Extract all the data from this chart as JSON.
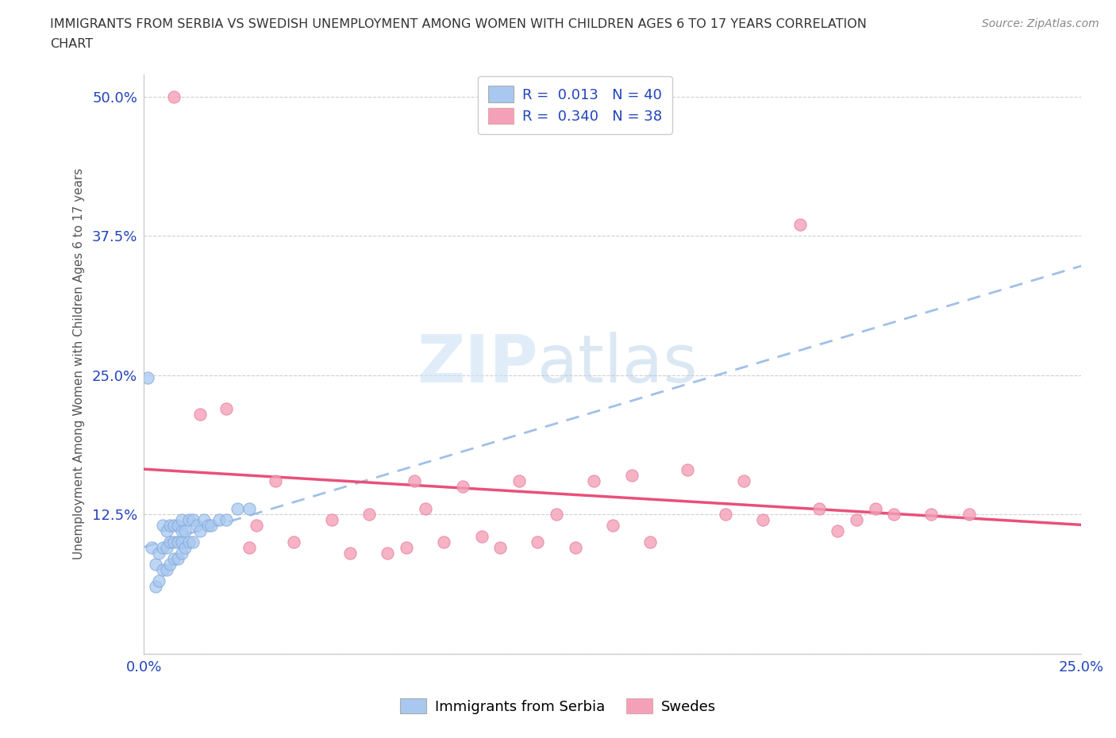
{
  "title_line1": "IMMIGRANTS FROM SERBIA VS SWEDISH UNEMPLOYMENT AMONG WOMEN WITH CHILDREN AGES 6 TO 17 YEARS CORRELATION",
  "title_line2": "CHART",
  "source": "Source: ZipAtlas.com",
  "ylabel_label": "Unemployment Among Women with Children Ages 6 to 17 years",
  "xlim": [
    0.0,
    0.25
  ],
  "ylim": [
    0.0,
    0.52
  ],
  "xticks": [
    0.0,
    0.025,
    0.05,
    0.075,
    0.1,
    0.125,
    0.15,
    0.175,
    0.2,
    0.225,
    0.25
  ],
  "xticklabels": [
    "0.0%",
    "",
    "",
    "",
    "",
    "",
    "",
    "",
    "",
    "",
    "25.0%"
  ],
  "yticks": [
    0.0,
    0.125,
    0.25,
    0.375,
    0.5
  ],
  "yticklabels": [
    "",
    "12.5%",
    "25.0%",
    "37.5%",
    "50.0%"
  ],
  "series1_color": "#a8c8f0",
  "series2_color": "#f4a0b8",
  "trendline1_color": "#a0c0e8",
  "trendline2_color": "#e8507a",
  "legend_R1": "0.013",
  "legend_N1": "40",
  "legend_R2": "0.340",
  "legend_N2": "38",
  "series1_label": "Immigrants from Serbia",
  "series2_label": "Swedes",
  "series1_x": [
    0.002,
    0.003,
    0.003,
    0.004,
    0.004,
    0.005,
    0.005,
    0.005,
    0.006,
    0.006,
    0.006,
    0.007,
    0.007,
    0.007,
    0.008,
    0.008,
    0.008,
    0.009,
    0.009,
    0.009,
    0.01,
    0.01,
    0.01,
    0.01,
    0.011,
    0.011,
    0.012,
    0.012,
    0.013,
    0.013,
    0.014,
    0.015,
    0.016,
    0.017,
    0.018,
    0.02,
    0.022,
    0.025,
    0.028,
    0.001
  ],
  "series1_y": [
    0.095,
    0.06,
    0.08,
    0.065,
    0.09,
    0.075,
    0.095,
    0.115,
    0.075,
    0.095,
    0.11,
    0.08,
    0.1,
    0.115,
    0.085,
    0.1,
    0.115,
    0.085,
    0.1,
    0.115,
    0.09,
    0.1,
    0.11,
    0.12,
    0.095,
    0.11,
    0.1,
    0.12,
    0.1,
    0.12,
    0.115,
    0.11,
    0.12,
    0.115,
    0.115,
    0.12,
    0.12,
    0.13,
    0.13,
    0.248
  ],
  "series2_x": [
    0.008,
    0.015,
    0.022,
    0.028,
    0.03,
    0.035,
    0.04,
    0.05,
    0.055,
    0.06,
    0.065,
    0.07,
    0.072,
    0.075,
    0.08,
    0.085,
    0.09,
    0.095,
    0.1,
    0.105,
    0.11,
    0.115,
    0.12,
    0.125,
    0.13,
    0.135,
    0.145,
    0.155,
    0.16,
    0.165,
    0.175,
    0.18,
    0.185,
    0.19,
    0.195,
    0.2,
    0.21,
    0.22
  ],
  "series2_y": [
    0.5,
    0.215,
    0.22,
    0.095,
    0.115,
    0.155,
    0.1,
    0.12,
    0.09,
    0.125,
    0.09,
    0.095,
    0.155,
    0.13,
    0.1,
    0.15,
    0.105,
    0.095,
    0.155,
    0.1,
    0.125,
    0.095,
    0.155,
    0.115,
    0.16,
    0.1,
    0.165,
    0.125,
    0.155,
    0.12,
    0.385,
    0.13,
    0.11,
    0.12,
    0.13,
    0.125,
    0.125,
    0.125
  ],
  "background_color": "#ffffff",
  "grid_color": "#d0d0d0"
}
